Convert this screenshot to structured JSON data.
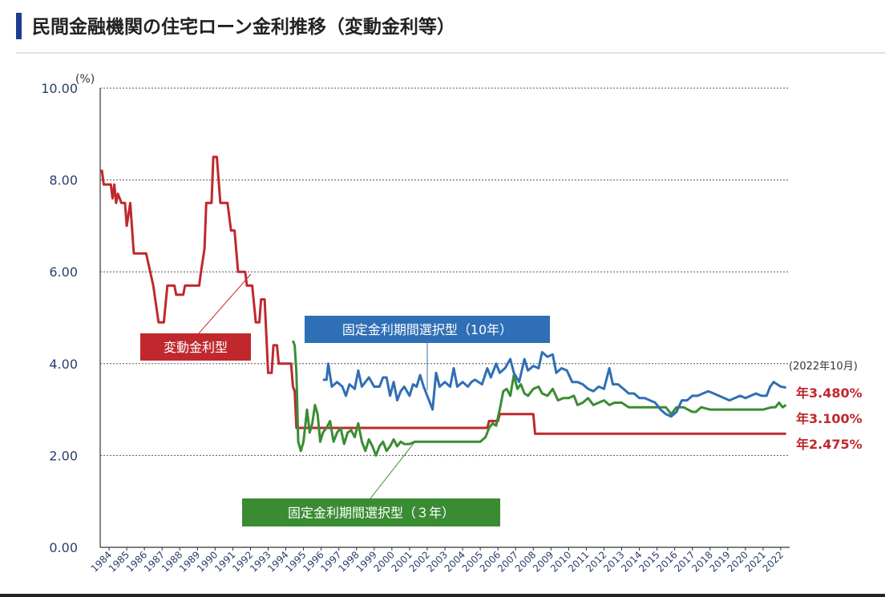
{
  "page": {
    "title": "民間金融機関の住宅ローン金利推移（変動金利等）"
  },
  "chart_data": {
    "type": "line",
    "ylabel": "(%)",
    "ylim": [
      0,
      10
    ],
    "yticks": [
      "0.00",
      "2.00",
      "4.00",
      "6.00",
      "8.00",
      "10.00"
    ],
    "xlim": [
      1984,
      2023
    ],
    "xticks": [
      "1984",
      "1985",
      "1986",
      "1987",
      "1988",
      "1989",
      "1990",
      "1991",
      "1992",
      "1993",
      "1994",
      "1995",
      "1996",
      "1997",
      "1998",
      "1999",
      "2000",
      "2001",
      "2002",
      "2003",
      "2004",
      "2005",
      "2006",
      "2007",
      "2008",
      "2009",
      "2010",
      "2011",
      "2012",
      "2013",
      "2014",
      "2015",
      "2016",
      "2017",
      "2018",
      "2019",
      "2020",
      "2021",
      "2022"
    ],
    "grid": "horizontal-dotted",
    "date_note": "(2022年10月)",
    "colors": {
      "variable": "#c0282d",
      "fixed10": "#2f6fb5",
      "fixed3": "#3a8c33",
      "grid": "#555555",
      "axis_text": "#2c3e6b"
    },
    "series": [
      {
        "name": "変動金利型",
        "color": "#c0282d",
        "end_label": "年2.475%",
        "points": [
          [
            1984.0,
            8.2
          ],
          [
            1984.1,
            8.2
          ],
          [
            1984.2,
            7.9
          ],
          [
            1984.6,
            7.9
          ],
          [
            1984.7,
            7.6
          ],
          [
            1984.8,
            7.9
          ],
          [
            1984.9,
            7.5
          ],
          [
            1985.0,
            7.7
          ],
          [
            1985.2,
            7.5
          ],
          [
            1985.4,
            7.5
          ],
          [
            1985.5,
            7.0
          ],
          [
            1985.7,
            7.5
          ],
          [
            1985.9,
            6.4
          ],
          [
            1986.5,
            6.4
          ],
          [
            1986.6,
            6.4
          ],
          [
            1987.0,
            5.7
          ],
          [
            1987.3,
            4.9
          ],
          [
            1987.6,
            4.9
          ],
          [
            1987.8,
            5.7
          ],
          [
            1988.2,
            5.7
          ],
          [
            1988.3,
            5.5
          ],
          [
            1988.7,
            5.5
          ],
          [
            1988.8,
            5.7
          ],
          [
            1989.6,
            5.7
          ],
          [
            1989.7,
            6.0
          ],
          [
            1989.9,
            6.5
          ],
          [
            1990.0,
            7.5
          ],
          [
            1990.3,
            7.5
          ],
          [
            1990.4,
            8.5
          ],
          [
            1990.6,
            8.5
          ],
          [
            1990.8,
            7.5
          ],
          [
            1991.2,
            7.5
          ],
          [
            1991.4,
            6.9
          ],
          [
            1991.6,
            6.9
          ],
          [
            1991.8,
            6.0
          ],
          [
            1992.2,
            6.0
          ],
          [
            1992.3,
            5.7
          ],
          [
            1992.6,
            5.7
          ],
          [
            1992.8,
            4.9
          ],
          [
            1993.0,
            4.9
          ],
          [
            1993.1,
            5.4
          ],
          [
            1993.3,
            5.4
          ],
          [
            1993.5,
            3.8
          ],
          [
            1993.7,
            3.8
          ],
          [
            1993.8,
            4.4
          ],
          [
            1994.0,
            4.4
          ],
          [
            1994.1,
            4.0
          ],
          [
            1994.8,
            4.0
          ],
          [
            1994.9,
            3.5
          ],
          [
            1995.0,
            3.4
          ],
          [
            1995.1,
            2.6
          ],
          [
            2005.9,
            2.6
          ],
          [
            2006.0,
            2.75
          ],
          [
            2006.5,
            2.75
          ],
          [
            2006.6,
            2.9
          ],
          [
            2008.5,
            2.9
          ],
          [
            2008.6,
            2.475
          ],
          [
            2022.8,
            2.475
          ]
        ]
      },
      {
        "name": "固定金利期間選択型（10年）",
        "color": "#2f6fb5",
        "end_label": "年3.480%",
        "points": [
          [
            1996.6,
            3.65
          ],
          [
            1996.8,
            3.65
          ],
          [
            1996.9,
            4.0
          ],
          [
            1997.1,
            3.5
          ],
          [
            1997.4,
            3.6
          ],
          [
            1997.7,
            3.5
          ],
          [
            1997.9,
            3.3
          ],
          [
            1998.1,
            3.55
          ],
          [
            1998.4,
            3.45
          ],
          [
            1998.6,
            3.85
          ],
          [
            1998.8,
            3.5
          ],
          [
            1999.0,
            3.6
          ],
          [
            1999.2,
            3.7
          ],
          [
            1999.5,
            3.5
          ],
          [
            1999.8,
            3.5
          ],
          [
            2000.0,
            3.7
          ],
          [
            2000.2,
            3.7
          ],
          [
            2000.4,
            3.3
          ],
          [
            2000.6,
            3.6
          ],
          [
            2000.8,
            3.2
          ],
          [
            2001.0,
            3.4
          ],
          [
            2001.2,
            3.5
          ],
          [
            2001.5,
            3.3
          ],
          [
            2001.7,
            3.55
          ],
          [
            2001.9,
            3.5
          ],
          [
            2002.1,
            3.75
          ],
          [
            2002.3,
            3.5
          ],
          [
            2002.6,
            3.2
          ],
          [
            2002.8,
            3.0
          ],
          [
            2003.0,
            3.8
          ],
          [
            2003.2,
            3.5
          ],
          [
            2003.5,
            3.6
          ],
          [
            2003.8,
            3.5
          ],
          [
            2004.0,
            3.9
          ],
          [
            2004.2,
            3.5
          ],
          [
            2004.5,
            3.6
          ],
          [
            2004.8,
            3.5
          ],
          [
            2005.0,
            3.6
          ],
          [
            2005.2,
            3.65
          ],
          [
            2005.6,
            3.55
          ],
          [
            2005.9,
            3.9
          ],
          [
            2006.1,
            3.7
          ],
          [
            2006.4,
            4.0
          ],
          [
            2006.6,
            3.8
          ],
          [
            2006.9,
            3.9
          ],
          [
            2007.2,
            4.1
          ],
          [
            2007.4,
            3.8
          ],
          [
            2007.7,
            3.6
          ],
          [
            2008.0,
            4.1
          ],
          [
            2008.2,
            3.85
          ],
          [
            2008.5,
            3.95
          ],
          [
            2008.8,
            3.9
          ],
          [
            2009.0,
            4.25
          ],
          [
            2009.3,
            4.15
          ],
          [
            2009.6,
            4.2
          ],
          [
            2009.8,
            3.8
          ],
          [
            2010.1,
            3.9
          ],
          [
            2010.4,
            3.85
          ],
          [
            2010.7,
            3.6
          ],
          [
            2011.0,
            3.6
          ],
          [
            2011.3,
            3.55
          ],
          [
            2011.6,
            3.45
          ],
          [
            2011.9,
            3.4
          ],
          [
            2012.2,
            3.5
          ],
          [
            2012.5,
            3.45
          ],
          [
            2012.8,
            3.9
          ],
          [
            2013.0,
            3.55
          ],
          [
            2013.3,
            3.55
          ],
          [
            2013.6,
            3.45
          ],
          [
            2013.9,
            3.35
          ],
          [
            2014.2,
            3.35
          ],
          [
            2014.5,
            3.25
          ],
          [
            2014.8,
            3.25
          ],
          [
            2015.1,
            3.2
          ],
          [
            2015.4,
            3.15
          ],
          [
            2015.7,
            3.0
          ],
          [
            2016.0,
            2.9
          ],
          [
            2016.3,
            2.85
          ],
          [
            2016.6,
            2.95
          ],
          [
            2016.9,
            3.2
          ],
          [
            2017.2,
            3.2
          ],
          [
            2017.5,
            3.3
          ],
          [
            2017.8,
            3.3
          ],
          [
            2018.1,
            3.35
          ],
          [
            2018.4,
            3.4
          ],
          [
            2018.7,
            3.35
          ],
          [
            2019.0,
            3.3
          ],
          [
            2019.3,
            3.25
          ],
          [
            2019.6,
            3.2
          ],
          [
            2019.9,
            3.25
          ],
          [
            2020.2,
            3.3
          ],
          [
            2020.5,
            3.25
          ],
          [
            2020.8,
            3.3
          ],
          [
            2021.1,
            3.35
          ],
          [
            2021.4,
            3.3
          ],
          [
            2021.7,
            3.3
          ],
          [
            2021.9,
            3.5
          ],
          [
            2022.1,
            3.6
          ],
          [
            2022.3,
            3.55
          ],
          [
            2022.5,
            3.5
          ],
          [
            2022.8,
            3.48
          ]
        ]
      },
      {
        "name": "固定金利期間選択型（３年）",
        "color": "#3a8c33",
        "end_label": "年3.100%",
        "points": [
          [
            1994.9,
            4.5
          ],
          [
            1995.0,
            4.4
          ],
          [
            1995.1,
            3.8
          ],
          [
            1995.2,
            2.3
          ],
          [
            1995.35,
            2.1
          ],
          [
            1995.5,
            2.3
          ],
          [
            1995.7,
            3.0
          ],
          [
            1995.85,
            2.5
          ],
          [
            1996.0,
            2.7
          ],
          [
            1996.15,
            3.1
          ],
          [
            1996.3,
            2.9
          ],
          [
            1996.45,
            2.3
          ],
          [
            1996.6,
            2.5
          ],
          [
            1996.8,
            2.6
          ],
          [
            1997.0,
            2.75
          ],
          [
            1997.2,
            2.3
          ],
          [
            1997.4,
            2.5
          ],
          [
            1997.6,
            2.6
          ],
          [
            1997.8,
            2.25
          ],
          [
            1998.0,
            2.5
          ],
          [
            1998.2,
            2.55
          ],
          [
            1998.4,
            2.4
          ],
          [
            1998.6,
            2.7
          ],
          [
            1998.8,
            2.3
          ],
          [
            1999.0,
            2.1
          ],
          [
            1999.2,
            2.35
          ],
          [
            1999.4,
            2.2
          ],
          [
            1999.6,
            2.0
          ],
          [
            1999.8,
            2.2
          ],
          [
            2000.0,
            2.3
          ],
          [
            2000.2,
            2.1
          ],
          [
            2000.4,
            2.2
          ],
          [
            2000.6,
            2.35
          ],
          [
            2000.8,
            2.2
          ],
          [
            2001.0,
            2.3
          ],
          [
            2001.2,
            2.25
          ],
          [
            2001.5,
            2.25
          ],
          [
            2001.8,
            2.3
          ],
          [
            2005.5,
            2.3
          ],
          [
            2005.8,
            2.4
          ],
          [
            2006.0,
            2.6
          ],
          [
            2006.2,
            2.7
          ],
          [
            2006.4,
            2.65
          ],
          [
            2006.6,
            3.0
          ],
          [
            2006.8,
            3.4
          ],
          [
            2007.0,
            3.45
          ],
          [
            2007.2,
            3.3
          ],
          [
            2007.4,
            3.75
          ],
          [
            2007.6,
            3.45
          ],
          [
            2007.8,
            3.55
          ],
          [
            2008.0,
            3.35
          ],
          [
            2008.2,
            3.3
          ],
          [
            2008.5,
            3.45
          ],
          [
            2008.8,
            3.5
          ],
          [
            2009.0,
            3.35
          ],
          [
            2009.3,
            3.3
          ],
          [
            2009.6,
            3.45
          ],
          [
            2009.9,
            3.2
          ],
          [
            2010.2,
            3.25
          ],
          [
            2010.5,
            3.25
          ],
          [
            2010.8,
            3.3
          ],
          [
            2011.0,
            3.1
          ],
          [
            2011.3,
            3.15
          ],
          [
            2011.6,
            3.25
          ],
          [
            2011.9,
            3.1
          ],
          [
            2012.2,
            3.15
          ],
          [
            2012.5,
            3.2
          ],
          [
            2012.8,
            3.1
          ],
          [
            2013.1,
            3.15
          ],
          [
            2013.5,
            3.15
          ],
          [
            2013.9,
            3.05
          ],
          [
            2014.5,
            3.05
          ],
          [
            2015.0,
            3.05
          ],
          [
            2015.5,
            3.05
          ],
          [
            2016.0,
            3.05
          ],
          [
            2016.3,
            2.9
          ],
          [
            2016.6,
            3.05
          ],
          [
            2017.0,
            3.05
          ],
          [
            2017.5,
            2.95
          ],
          [
            2017.7,
            2.95
          ],
          [
            2018.0,
            3.05
          ],
          [
            2018.5,
            3.0
          ],
          [
            2019.0,
            3.0
          ],
          [
            2019.5,
            3.0
          ],
          [
            2020.0,
            3.0
          ],
          [
            2020.5,
            3.0
          ],
          [
            2021.0,
            3.0
          ],
          [
            2021.5,
            3.0
          ],
          [
            2022.0,
            3.05
          ],
          [
            2022.2,
            3.05
          ],
          [
            2022.4,
            3.15
          ],
          [
            2022.6,
            3.05
          ],
          [
            2022.8,
            3.1
          ]
        ]
      }
    ]
  }
}
